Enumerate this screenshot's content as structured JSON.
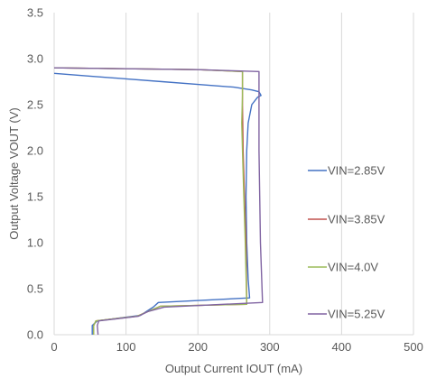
{
  "chart_data": {
    "type": "line",
    "title": "",
    "xlabel": "Output Current IOUT (mA)",
    "ylabel": "Output Voltage  VOUT (V)",
    "xlim": [
      0,
      500
    ],
    "ylim": [
      0,
      3.5
    ],
    "xticks": [
      0,
      100,
      200,
      300,
      400,
      500
    ],
    "yticks": [
      0.0,
      0.5,
      1.0,
      1.5,
      2.0,
      2.5,
      3.0,
      3.5
    ],
    "ytick_labels": [
      "0.0",
      "0.5",
      "1.0",
      "1.5",
      "2.0",
      "2.5",
      "3.0",
      "3.5"
    ],
    "grid": "vertical",
    "legend_position": "right",
    "series": [
      {
        "name": "VIN=2.85V",
        "color": "#4472c4",
        "x": [
          0,
          50,
          100,
          150,
          200,
          250,
          275,
          285,
          288,
          283,
          275,
          270,
          268,
          267,
          268,
          270,
          272,
          145,
          138,
          120,
          60,
          53,
          53
        ],
        "y": [
          2.84,
          2.81,
          2.78,
          2.75,
          2.72,
          2.69,
          2.66,
          2.64,
          2.6,
          2.58,
          2.5,
          2.3,
          2.0,
          1.5,
          1.0,
          0.6,
          0.4,
          0.35,
          0.3,
          0.21,
          0.15,
          0.1,
          0.0
        ]
      },
      {
        "name": "VIN=3.85V",
        "color": "#c0504d",
        "x": [
          0,
          100,
          200,
          262,
          262,
          263,
          265,
          267,
          268,
          148,
          130,
          115,
          58,
          55,
          55
        ],
        "y": [
          2.9,
          2.89,
          2.88,
          2.86,
          2.5,
          2.0,
          1.5,
          1.0,
          0.33,
          0.31,
          0.25,
          0.2,
          0.15,
          0.1,
          0.0
        ]
      },
      {
        "name": "VIN=4.0V",
        "color": "#9bbb59",
        "x": [
          0,
          100,
          200,
          262,
          262,
          261,
          262,
          264,
          266,
          268,
          148,
          130,
          115,
          58,
          55,
          55
        ],
        "y": [
          2.9,
          2.89,
          2.88,
          2.86,
          2.6,
          2.3,
          2.0,
          1.5,
          1.0,
          0.33,
          0.31,
          0.25,
          0.2,
          0.15,
          0.1,
          0.0
        ]
      },
      {
        "name": "VIN=5.25V",
        "color": "#8064a2",
        "x": [
          0,
          100,
          200,
          285,
          285,
          285,
          286,
          287,
          290,
          153,
          130,
          117,
          62,
          60,
          61
        ],
        "y": [
          2.9,
          2.89,
          2.88,
          2.86,
          2.5,
          2.0,
          1.5,
          1.0,
          0.35,
          0.3,
          0.25,
          0.2,
          0.15,
          0.1,
          0.0
        ]
      }
    ]
  }
}
